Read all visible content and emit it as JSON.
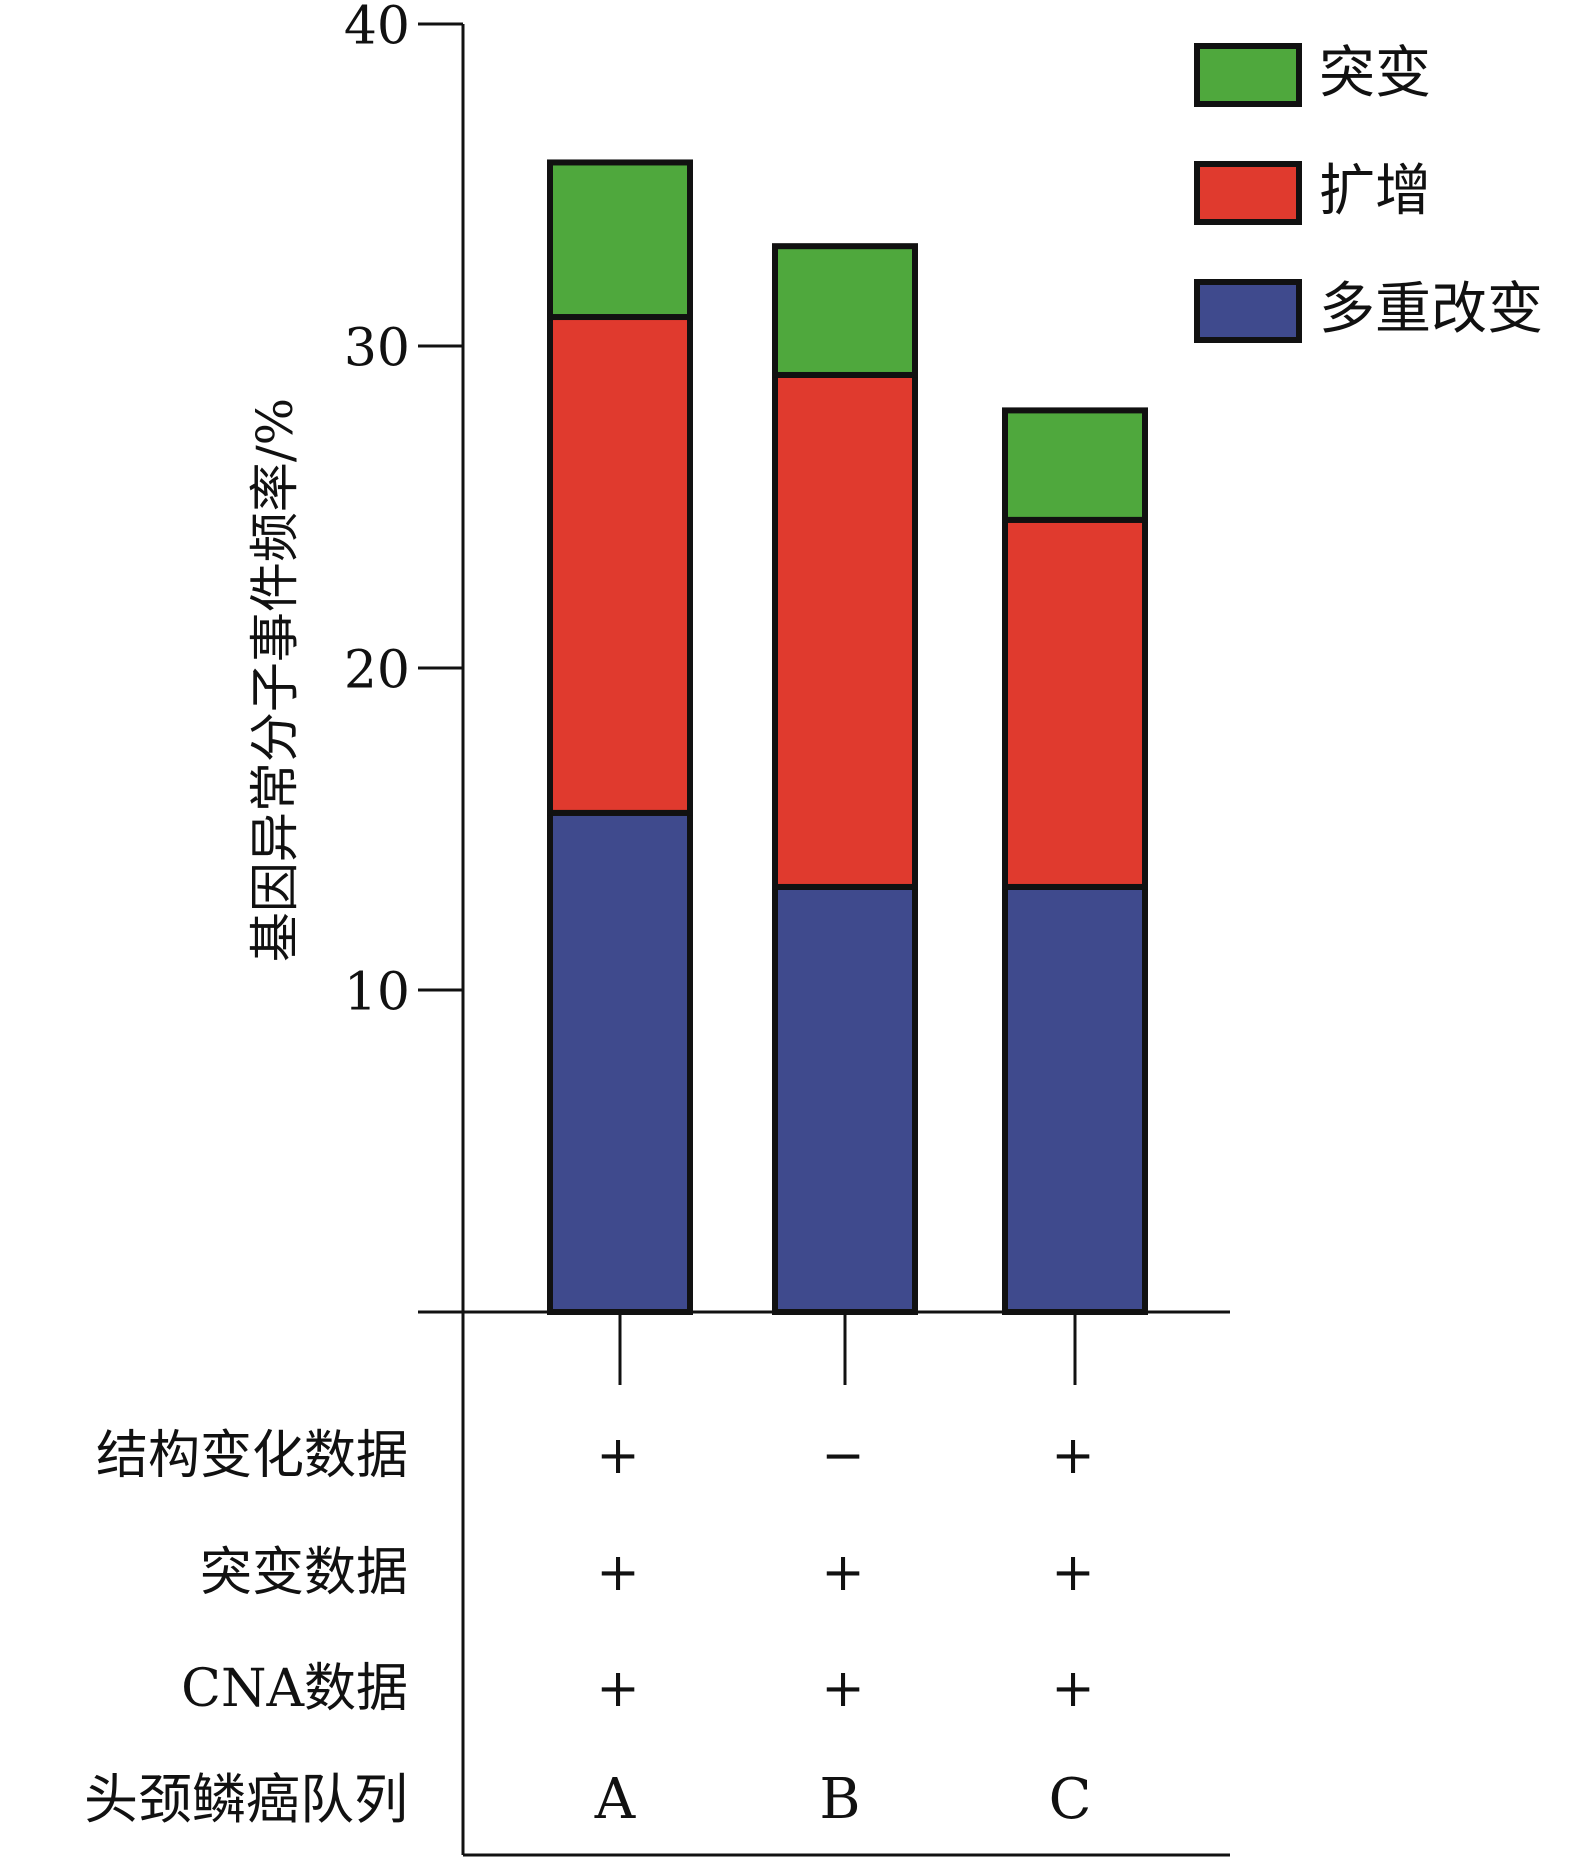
{
  "chart_data": {
    "type": "bar",
    "stacked": true,
    "ylabel": "基因异常分子事件频率/%",
    "ylim": [
      0,
      40
    ],
    "yticks": [
      10,
      20,
      30,
      40
    ],
    "grid": false,
    "legend_position": "top-right",
    "categories": [
      "A",
      "B",
      "C"
    ],
    "series": [
      {
        "name": "多重改变",
        "color": "#3f4a8d",
        "values": [
          15.5,
          13.2,
          13.2
        ]
      },
      {
        "name": "扩增",
        "color": "#e03a2e",
        "values": [
          15.4,
          15.9,
          11.4
        ]
      },
      {
        "name": "突变",
        "color": "#4fa83d",
        "values": [
          4.8,
          4.0,
          3.4
        ]
      }
    ],
    "legend_order": [
      "突变",
      "扩增",
      "多重改变"
    ]
  },
  "feature_table": {
    "rows": [
      {
        "label": "结构变化数据",
        "values": [
          "+",
          "−",
          "+"
        ]
      },
      {
        "label": "突变数据",
        "values": [
          "+",
          "+",
          "+"
        ]
      },
      {
        "label": "CNA数据",
        "values": [
          "+",
          "+",
          "+"
        ]
      },
      {
        "label": "头颈鳞癌队列",
        "values": [
          "A",
          "B",
          "C"
        ]
      }
    ]
  }
}
